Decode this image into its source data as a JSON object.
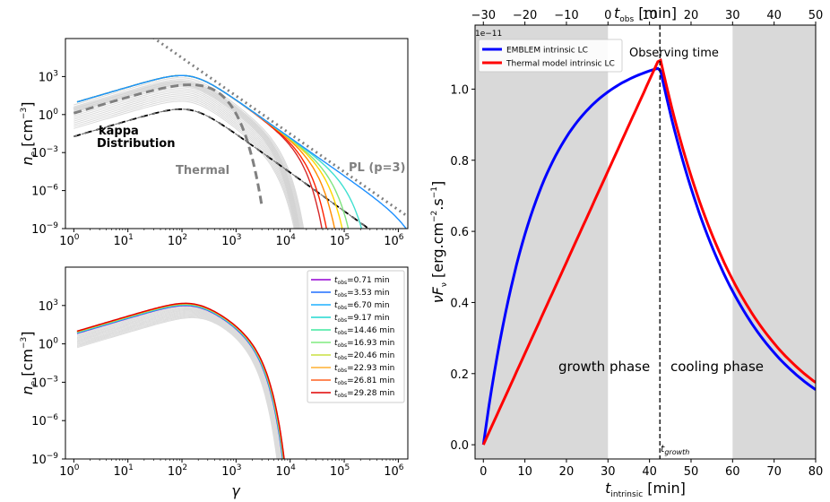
{
  "chart_data": [
    {
      "id": "top_left",
      "type": "line",
      "xscale": "log",
      "yscale": "log",
      "xlim": [
        0.7,
        1500000
      ],
      "ylim": [
        1e-09,
        1000000
      ],
      "xlabel": "",
      "ylabel": "n_e [cm^-3]",
      "ylabel_main": "n",
      "ylabel_sub": "e",
      "ylabel_tail": " [cm",
      "ylabel_exp": "−3",
      "ylabel_close": "]",
      "xticks": [
        {
          "exp": "0"
        },
        {
          "exp": "1"
        },
        {
          "exp": "2"
        },
        {
          "exp": "3"
        },
        {
          "exp": "4"
        },
        {
          "exp": "5"
        },
        {
          "exp": "6"
        }
      ],
      "yticks": [
        {
          "exp": "−9"
        },
        {
          "exp": "−6"
        },
        {
          "exp": "−3"
        },
        {
          "exp": "0"
        },
        {
          "exp": "3"
        }
      ],
      "tick_base": "10",
      "annotations": {
        "kappa": "kappa",
        "distribution": "Distribution",
        "thermal": "Thermal",
        "pl": "PL (p=3)"
      },
      "series": [
        {
          "name": "cutoff_1",
          "cutoff": 8000,
          "color": "#d62728"
        },
        {
          "name": "cutoff_2",
          "cutoff": 10000,
          "color": "#ff2200"
        },
        {
          "name": "cutoff_3",
          "cutoff": 15000,
          "color": "#ff8c00"
        },
        {
          "name": "cutoff_4",
          "cutoff": 22000,
          "color": "#ffd700"
        },
        {
          "name": "cutoff_5",
          "cutoff": 30000,
          "color": "#7fe57f"
        },
        {
          "name": "cutoff_6",
          "cutoff": 60000,
          "color": "#40e0d0"
        },
        {
          "name": "cutoff_7",
          "cutoff": 1000000,
          "color": "#1e90ff"
        }
      ],
      "peak_value": 1000,
      "peak_gamma": 150
    },
    {
      "id": "bottom_left",
      "type": "line",
      "xscale": "log",
      "yscale": "log",
      "xlim": [
        0.7,
        1500000
      ],
      "ylim": [
        1e-09,
        1000000
      ],
      "xlabel": "γ",
      "ylabel_main": "n",
      "ylabel_sub": "e",
      "ylabel_tail": " [cm",
      "ylabel_exp": "−3",
      "ylabel_close": "]",
      "xticks": [
        {
          "exp": "0"
        },
        {
          "exp": "1"
        },
        {
          "exp": "2"
        },
        {
          "exp": "3"
        },
        {
          "exp": "4"
        },
        {
          "exp": "5"
        },
        {
          "exp": "6"
        }
      ],
      "yticks": [
        {
          "exp": "−9"
        },
        {
          "exp": "−6"
        },
        {
          "exp": "−3"
        },
        {
          "exp": "0"
        },
        {
          "exp": "3"
        }
      ],
      "tick_base": "10",
      "legend": [
        {
          "label": "=0.71 min",
          "color": "#9400d3"
        },
        {
          "label": "=3.53 min",
          "color": "#1e6fff"
        },
        {
          "label": "=6.70 min",
          "color": "#1eb0ff"
        },
        {
          "label": "=9.17 min",
          "color": "#20d8d0"
        },
        {
          "label": "=14.46 min",
          "color": "#40e8a0"
        },
        {
          "label": "=16.93 min",
          "color": "#7fec7f"
        },
        {
          "label": "=20.46 min",
          "color": "#c8e040"
        },
        {
          "label": "=22.93 min",
          "color": "#ffb030"
        },
        {
          "label": "=26.81 min",
          "color": "#ff6020"
        },
        {
          "label": "=29.28 min",
          "color": "#e00000"
        }
      ],
      "legend_prefix": "t",
      "legend_sub": "obs"
    },
    {
      "id": "right",
      "type": "line",
      "title_top": "t_obs [min]",
      "top_main": "t",
      "top_sub": "obs",
      "top_tail": " [min]",
      "bottom_main": "t",
      "bottom_sub": "intrinsic",
      "bottom_tail": " [min]",
      "ylabel": "νF_ν [erg.cm^-2.s^-1]",
      "ylabel_main": "νF",
      "ylabel_sub": "ν",
      "ylabel_tail": " [erg.cm",
      "ylabel_exp": "−2",
      "ylabel_mid": ".s",
      "ylabel_exp2": "−1",
      "ylabel_close": "]",
      "xlim": [
        -2,
        80
      ],
      "ylim": [
        -0.04,
        1.18
      ],
      "xticks": [
        "0",
        "10",
        "20",
        "30",
        "40",
        "50",
        "60",
        "70",
        "80"
      ],
      "top_ticks": [
        "−30",
        "−20",
        "−10",
        "0",
        "10",
        "20",
        "30",
        "40",
        "50"
      ],
      "yticks": [
        "0.0",
        "0.2",
        "0.4",
        "0.6",
        "0.8",
        "1.0"
      ],
      "y_offset_text": "1e−11",
      "shaded_regions": [
        [
          -2,
          30
        ],
        [
          60,
          80
        ]
      ],
      "growth_time": 42.5,
      "growth_label_main": "t",
      "growth_label_sub": "growth",
      "annotations": {
        "observing": "Observing time",
        "growth": "growth phase",
        "cooling": "cooling phase"
      },
      "legend": [
        {
          "label": "EMBLEM intrinsic LC",
          "color": "#0000ff"
        },
        {
          "label": "Thermal model intrinsic LC",
          "color": "#ff0000"
        }
      ],
      "series": [
        {
          "name": "EMBLEM intrinsic LC",
          "peak": 1.06,
          "color": "#0000ff"
        },
        {
          "name": "Thermal model intrinsic LC",
          "peak": 1.09,
          "color": "#ff0000"
        }
      ]
    }
  ]
}
